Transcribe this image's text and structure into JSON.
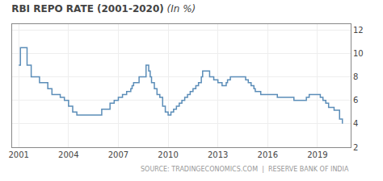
{
  "chart_data": {
    "type": "step",
    "title": "RBI REPO RATE (2001-2020)",
    "subtitle": " (In %)",
    "annotations": [
      "SOURCE: TRADINGECONOMICS.COM  |  RESERVE BANK OF INDIA"
    ],
    "color": "#5b8db8",
    "grid": true,
    "xlim": [
      2000.6,
      2021.0
    ],
    "xticks": [
      2001,
      2004,
      2007,
      2010,
      2013,
      2016,
      2019
    ],
    "ylim": [
      2,
      12.5
    ],
    "yticks": [
      2,
      4,
      6,
      8,
      10,
      12
    ],
    "x": [
      2001.0,
      2001.1,
      2001.5,
      2001.75,
      2002.25,
      2002.75,
      2003.0,
      2003.5,
      2003.75,
      2004.0,
      2004.25,
      2004.5,
      2005.75,
      2006.0,
      2006.5,
      2006.75,
      2007.0,
      2007.25,
      2007.5,
      2007.75,
      2007.83,
      2007.92,
      2008.25,
      2008.67,
      2008.83,
      2008.92,
      2009.0,
      2009.17,
      2009.33,
      2009.5,
      2009.67,
      2009.83,
      2010.0,
      2010.17,
      2010.33,
      2010.5,
      2010.67,
      2010.83,
      2011.0,
      2011.17,
      2011.33,
      2011.5,
      2011.67,
      2011.83,
      2012.0,
      2012.08,
      2012.5,
      2012.75,
      2013.0,
      2013.25,
      2013.5,
      2013.58,
      2013.75,
      2014.0,
      2014.58,
      2014.67,
      2014.83,
      2015.0,
      2015.17,
      2015.25,
      2015.5,
      2015.58,
      2016.5,
      2016.58,
      2017.5,
      2017.58,
      2018.25,
      2018.33,
      2018.5,
      2019.0,
      2019.17,
      2019.33,
      2019.5,
      2019.67,
      2020.0,
      2020.33,
      2020.5
    ],
    "values": [
      9.0,
      10.5,
      9.0,
      8.0,
      7.5,
      7.0,
      6.5,
      6.25,
      6.0,
      5.5,
      5.0,
      4.75,
      4.75,
      5.25,
      5.75,
      6.0,
      6.25,
      6.5,
      6.75,
      7.0,
      7.25,
      7.5,
      8.0,
      9.0,
      8.5,
      8.0,
      7.5,
      7.0,
      6.5,
      6.25,
      5.5,
      5.0,
      4.75,
      5.0,
      5.25,
      5.5,
      5.75,
      6.0,
      6.25,
      6.5,
      6.75,
      7.0,
      7.25,
      7.5,
      8.0,
      8.5,
      8.0,
      7.75,
      7.5,
      7.25,
      7.5,
      7.75,
      8.0,
      8.0,
      8.0,
      7.75,
      7.5,
      7.25,
      7.0,
      6.75,
      6.75,
      6.5,
      6.5,
      6.25,
      6.25,
      6.0,
      6.0,
      6.25,
      6.5,
      6.5,
      6.25,
      6.0,
      5.75,
      5.4,
      5.15,
      4.4,
      4.0
    ]
  }
}
